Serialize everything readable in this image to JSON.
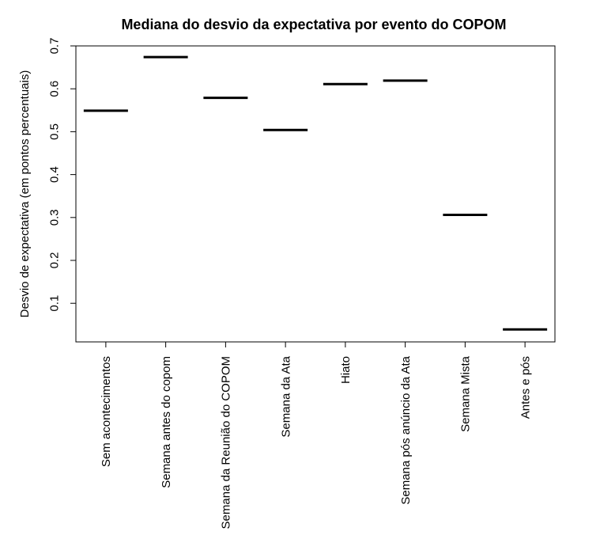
{
  "chart_data": {
    "type": "boxplot-median",
    "title": "Mediana do desvio da expectativa por evento do COPOM",
    "xlabel": "",
    "ylabel": "Desvio de expectativa (em pontos percentuais)",
    "ylim": [
      0.01,
      0.7
    ],
    "yticks": [
      0.1,
      0.2,
      0.3,
      0.4,
      0.5,
      0.6,
      0.7
    ],
    "ytick_labels": [
      "0.1",
      "0.2",
      "0.3",
      "0.4",
      "0.5",
      "0.6",
      "0.7"
    ],
    "categories": [
      "Sem acontecimentos",
      "Semana antes do copom",
      "Semana da Reunião do COPOM",
      "Semana da Ata",
      "Hiato",
      "Semana pós anúncio da Ata",
      "Semana Mista",
      "Antes e pós"
    ],
    "values": [
      0.549,
      0.674,
      0.579,
      0.504,
      0.611,
      0.619,
      0.306,
      0.039
    ],
    "grid": false,
    "legend": "none",
    "line_color": "#000000"
  }
}
